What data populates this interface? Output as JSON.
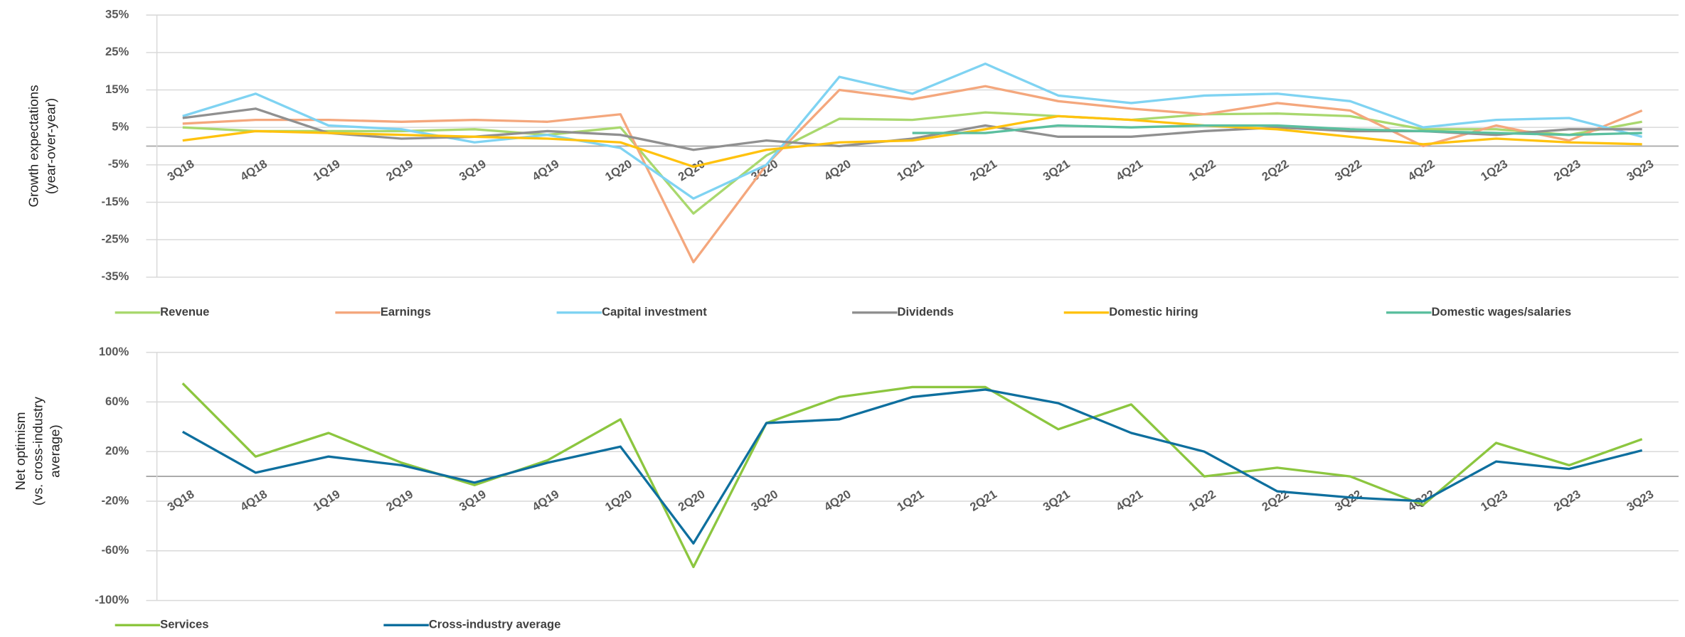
{
  "chart_data": [
    {
      "type": "line",
      "ylabel": [
        "Growth expectations",
        "(year-over-year)"
      ],
      "categories": [
        "3Q18",
        "4Q18",
        "1Q19",
        "2Q19",
        "3Q19",
        "4Q19",
        "1Q20",
        "2Q20",
        "3Q20",
        "4Q20",
        "1Q21",
        "2Q21",
        "3Q21",
        "4Q21",
        "1Q22",
        "2Q22",
        "3Q22",
        "4Q22",
        "1Q23",
        "2Q23",
        "3Q23"
      ],
      "ylim": [
        -35,
        35
      ],
      "yticks": [
        {
          "value": 35,
          "label": "35%"
        },
        {
          "value": 25,
          "label": "25%"
        },
        {
          "value": 15,
          "label": "15%"
        },
        {
          "value": 5,
          "label": "5%"
        },
        {
          "value": -5,
          "label": "-5%"
        },
        {
          "value": -15,
          "label": "-15%"
        },
        {
          "value": -25,
          "label": "-25%"
        },
        {
          "value": -35,
          "label": "-35%"
        }
      ],
      "grid": true,
      "series": [
        {
          "name": "Revenue",
          "color": "#a9d86e",
          "values": [
            5,
            4,
            4,
            4,
            4.5,
            3,
            5,
            -18,
            -2.5,
            7.3,
            7,
            9,
            8,
            7,
            8.5,
            8.7,
            8,
            4.5,
            4.5,
            3,
            6.5
          ]
        },
        {
          "name": "Earnings",
          "color": "#f4a77d",
          "values": [
            6,
            7,
            7,
            6.5,
            7,
            6.5,
            8.5,
            -31,
            -5,
            15,
            12.5,
            16,
            12,
            10,
            8.5,
            11.5,
            9.5,
            0,
            5.5,
            1.5,
            9.5
          ]
        },
        {
          "name": "Capital investment",
          "color": "#7fd3f2",
          "values": [
            8,
            14,
            5.5,
            4.5,
            1,
            3,
            -0.5,
            -14,
            -5,
            18.5,
            14,
            22,
            13.5,
            11.5,
            13.5,
            14,
            12,
            5,
            7,
            7.5,
            2.5
          ]
        },
        {
          "name": "Dividends",
          "color": "#909090",
          "values": [
            7.5,
            10,
            3.5,
            2,
            2.5,
            4,
            3,
            -1,
            1.5,
            0,
            2,
            5.5,
            2.5,
            2.5,
            4,
            5,
            4,
            4,
            3,
            4.5,
            4.5
          ]
        },
        {
          "name": "Domestic hiring",
          "color": "#ffc20e",
          "values": [
            1.5,
            4,
            3.5,
            3,
            2.5,
            2,
            1,
            -5.5,
            -1,
            1,
            1.5,
            4.5,
            8,
            7,
            5.5,
            4.5,
            2.5,
            0.5,
            2,
            1,
            0.5
          ]
        },
        {
          "name": "Domestic wages/salaries",
          "color": "#5bbf9f",
          "values": [
            null,
            null,
            null,
            null,
            null,
            null,
            null,
            null,
            null,
            null,
            3.5,
            3.5,
            5.5,
            5,
            5.5,
            5.5,
            4.5,
            4,
            3.5,
            3,
            3.5
          ]
        }
      ]
    },
    {
      "type": "line",
      "ylabel": [
        "Net optimism",
        "(vs. cross-industry",
        "average)"
      ],
      "categories": [
        "3Q18",
        "4Q18",
        "1Q19",
        "2Q19",
        "3Q19",
        "4Q19",
        "1Q20",
        "2Q20",
        "3Q20",
        "4Q20",
        "1Q21",
        "2Q21",
        "3Q21",
        "4Q21",
        "1Q22",
        "2Q22",
        "3Q22",
        "4Q22",
        "1Q23",
        "2Q23",
        "3Q23"
      ],
      "ylim": [
        -100,
        100
      ],
      "yticks": [
        {
          "value": 100,
          "label": "100%"
        },
        {
          "value": 60,
          "label": "60%"
        },
        {
          "value": 20,
          "label": "20%"
        },
        {
          "value": -20,
          "label": "-20%"
        },
        {
          "value": -60,
          "label": "-60%"
        },
        {
          "value": -100,
          "label": "-100%"
        }
      ],
      "grid": true,
      "series": [
        {
          "name": "Services",
          "color": "#8cc63f",
          "values": [
            75,
            16,
            35,
            11,
            -7,
            13,
            46,
            -73,
            43,
            64,
            72,
            72,
            38,
            58,
            0,
            7,
            0,
            -23,
            27,
            9,
            30
          ]
        },
        {
          "name": "Cross-industry average",
          "color": "#0e6f9e",
          "values": [
            36,
            3,
            16,
            9,
            -5,
            11,
            24,
            -54,
            43,
            46,
            64,
            70,
            59,
            35,
            20,
            -12,
            -17,
            -20,
            12,
            6,
            21
          ]
        }
      ]
    }
  ]
}
